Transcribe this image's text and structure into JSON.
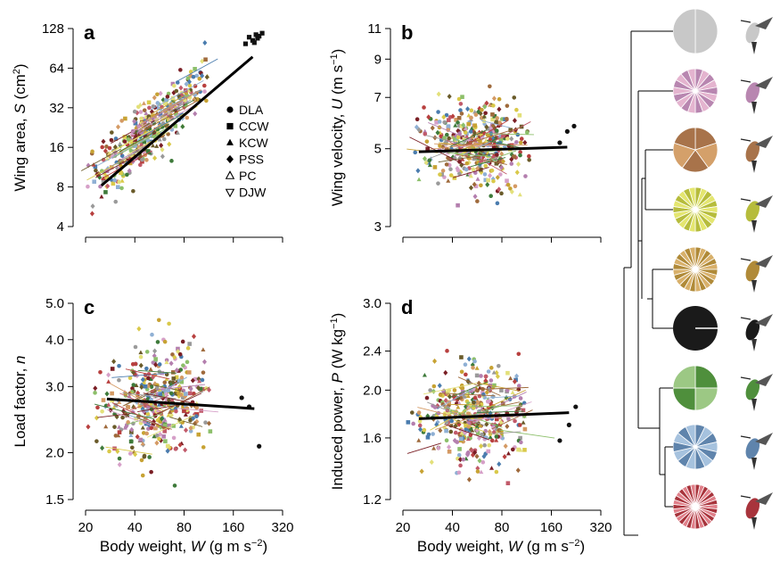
{
  "figure": {
    "panels": [
      {
        "id": "a",
        "label": "a"
      },
      {
        "id": "b",
        "label": "b"
      },
      {
        "id": "c",
        "label": "c"
      },
      {
        "id": "d",
        "label": "d"
      }
    ],
    "legend": {
      "entries": [
        {
          "marker": "circle",
          "label": "DLA"
        },
        {
          "marker": "square",
          "label": "CCW"
        },
        {
          "marker": "triangle-up",
          "label": "KCW"
        },
        {
          "marker": "diamond",
          "label": "PSS"
        },
        {
          "marker": "triangle-up-open",
          "label": "PC"
        },
        {
          "marker": "triangle-down-open",
          "label": "DJW"
        }
      ]
    },
    "x_ticks": [
      "20",
      "40",
      "80",
      "160",
      "320"
    ],
    "x_label_text": "Body weight, ",
    "x_label_var": "W",
    "x_label_unit": " (g m s",
    "x_label_exp": "−2",
    "x_label_close": ")",
    "phylogeny": {
      "clades": [
        {
          "color": "#c8c8c8",
          "accent": "#c8c8c8",
          "segments": 2
        },
        {
          "color": "#b886b0",
          "accent": "#e4b4cf",
          "segments": 18
        },
        {
          "color": "#a8734a",
          "accent": "#d4a06a",
          "segments": 5
        },
        {
          "color": "#b6bc3c",
          "accent": "#e4e670",
          "segments": 22
        },
        {
          "color": "#b08a38",
          "accent": "#d8b06a",
          "segments": 24
        },
        {
          "color": "#1a1a1a",
          "accent": "#1a1a1a",
          "segments": 1
        },
        {
          "color": "#4f8f3c",
          "accent": "#9cc884",
          "segments": 4
        },
        {
          "color": "#5f84ac",
          "accent": "#a6c2de",
          "segments": 14
        },
        {
          "color": "#a8343c",
          "accent": "#e0808a",
          "segments": 30
        }
      ],
      "bird_icons": [
        "hummingbird-icon",
        "hummingbird-icon",
        "hummingbird-icon",
        "hummingbird-icon",
        "hummingbird-icon",
        "hummingbird-icon",
        "hummingbird-icon",
        "hummingbird-icon",
        "hummingbird-icon"
      ]
    }
  },
  "chart_data": [
    {
      "type": "scatter",
      "panel": "a",
      "ylabel_text": "Wing area, ",
      "ylabel_var": "S",
      "ylabel_unit": " (cm",
      "ylabel_exp": "2",
      "ylabel_close": ")",
      "y_ticks": [
        "4",
        "8",
        "16",
        "32",
        "64",
        "128"
      ],
      "y_scale": "log2",
      "ylim": [
        4,
        128
      ],
      "x_scale": "log2",
      "xlim": [
        20,
        320
      ],
      "trend": {
        "x": [
          25,
          210
        ],
        "y": [
          8.2,
          78
        ]
      },
      "cloud": {
        "x_center": 50,
        "x_spread": 0.55,
        "y_center": 22,
        "y_slope": 1.1,
        "y_spread": 0.35
      },
      "extra_points": [
        [
          190,
          98
        ],
        [
          200,
          110
        ],
        [
          210,
          104
        ],
        [
          220,
          115
        ],
        [
          230,
          112
        ],
        [
          240,
          118
        ],
        [
          215,
          100
        ],
        [
          225,
          108
        ]
      ]
    },
    {
      "type": "scatter",
      "panel": "b",
      "ylabel_text": "Wing velocity, ",
      "ylabel_var": "U",
      "ylabel_unit": " (m s",
      "ylabel_exp": "−1",
      "ylabel_close": ")",
      "y_ticks": [
        "3",
        "5",
        "7",
        "9",
        "11"
      ],
      "y_scale": "log",
      "ylim": [
        3,
        11
      ],
      "x_scale": "log2",
      "xlim": [
        20,
        320
      ],
      "trend": {
        "x": [
          25,
          200
        ],
        "y": [
          4.9,
          5.05
        ]
      },
      "cloud": {
        "x_center": 55,
        "x_spread": 0.5,
        "y_center": 5.1,
        "y_slope": 0.0,
        "y_spread": 0.18
      },
      "extra_points": [
        [
          180,
          5.2
        ],
        [
          200,
          5.6
        ],
        [
          220,
          5.8
        ]
      ]
    },
    {
      "type": "scatter",
      "panel": "c",
      "ylabel_text": "Load factor, ",
      "ylabel_var": "n",
      "ylabel_unit": "",
      "ylabel_exp": "",
      "ylabel_close": "",
      "y_ticks": [
        "1.5",
        "2.0",
        "3.0",
        "4.0",
        "5.0"
      ],
      "y_scale": "log",
      "ylim": [
        1.5,
        5.0
      ],
      "x_scale": "log2",
      "xlim": [
        20,
        320
      ],
      "trend": {
        "x": [
          27,
          215
        ],
        "y": [
          2.78,
          2.62
        ]
      },
      "cloud": {
        "x_center": 55,
        "x_spread": 0.5,
        "y_center": 2.75,
        "y_slope": 0.0,
        "y_spread": 0.22
      },
      "extra_points": [
        [
          180,
          2.8
        ],
        [
          200,
          2.65
        ],
        [
          230,
          2.08
        ]
      ]
    },
    {
      "type": "scatter",
      "panel": "d",
      "ylabel_text": "Induced power, ",
      "ylabel_var": "P",
      "ylabel_unit": " (W kg",
      "ylabel_exp": "−1",
      "ylabel_close": ")",
      "y_ticks": [
        "1.2",
        "1.6",
        "2.0",
        "2.4",
        "3.0"
      ],
      "y_scale": "log",
      "ylim": [
        1.2,
        3.0
      ],
      "x_scale": "log2",
      "xlim": [
        20,
        320
      ],
      "trend": {
        "x": [
          25,
          205
        ],
        "y": [
          1.75,
          1.8
        ]
      },
      "cloud": {
        "x_center": 55,
        "x_spread": 0.5,
        "y_center": 1.8,
        "y_slope": 0.0,
        "y_spread": 0.15
      },
      "extra_points": [
        [
          180,
          1.58
        ],
        [
          205,
          1.7
        ],
        [
          225,
          1.85
        ]
      ]
    }
  ]
}
